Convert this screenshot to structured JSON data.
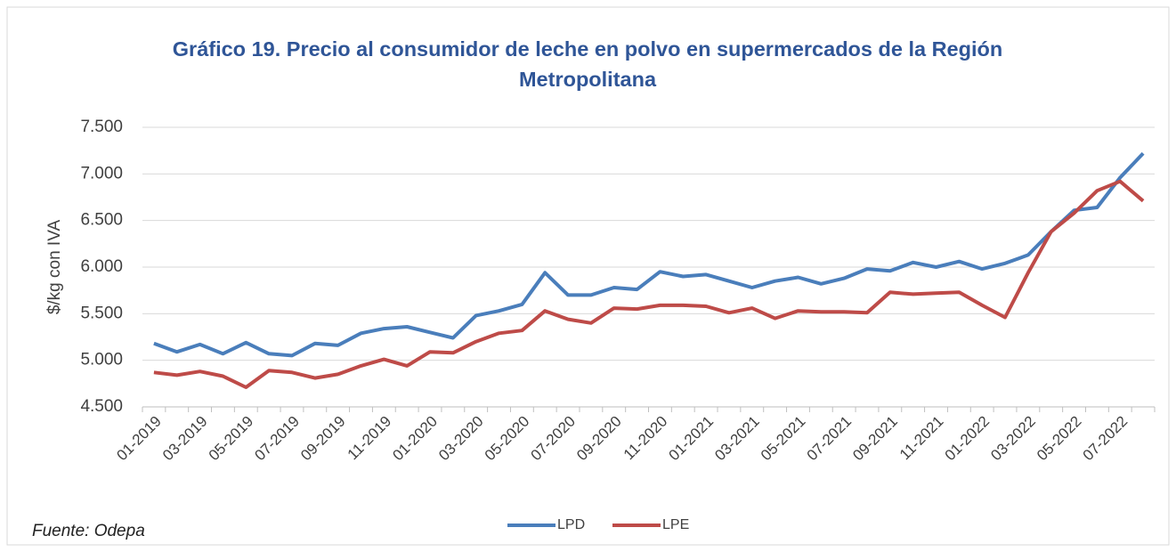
{
  "chart_data": {
    "type": "line",
    "title": "Gráfico 19. Precio al consumidor de leche en polvo en supermercados de la Región Metropolitana",
    "y_label": "$/kg con IVA",
    "source": "Fuente: Odepa",
    "categories": [
      "01-2019",
      null,
      "03-2019",
      null,
      "05-2019",
      null,
      "07-2019",
      null,
      "09-2019",
      null,
      "11-2019",
      null,
      "01-2020",
      null,
      "03-2020",
      null,
      "05-2020",
      null,
      "07-2020",
      null,
      "09-2020",
      null,
      "11-2020",
      null,
      "01-2021",
      null,
      "03-2021",
      null,
      "05-2021",
      null,
      "07-2021",
      null,
      "09-2021",
      null,
      "11-2021",
      null,
      "01-2022",
      null,
      "03-2022",
      null,
      "05-2022",
      null,
      "07-2022",
      null
    ],
    "series": [
      {
        "name": "LPD",
        "color": "#4a7ebb",
        "values": [
          5180,
          5090,
          5170,
          5070,
          5190,
          5070,
          5050,
          5180,
          5160,
          5290,
          5340,
          5360,
          5300,
          5240,
          5480,
          5530,
          5600,
          5940,
          5700,
          5700,
          5780,
          5760,
          5950,
          5900,
          5920,
          5850,
          5780,
          5850,
          5890,
          5820,
          5880,
          5980,
          5960,
          6050,
          6000,
          6060,
          5980,
          6040,
          6130,
          6380,
          6610,
          6640,
          6960,
          7220
        ]
      },
      {
        "name": "LPE",
        "color": "#be4b48",
        "values": [
          4870,
          4840,
          4880,
          4830,
          4710,
          4890,
          4870,
          4810,
          4850,
          4940,
          5010,
          4940,
          5090,
          5080,
          5200,
          5290,
          5320,
          5530,
          5440,
          5400,
          5560,
          5550,
          5590,
          5590,
          5580,
          5510,
          5560,
          5450,
          5530,
          5520,
          5520,
          5510,
          5730,
          5710,
          5720,
          5730,
          5590,
          5460,
          5940,
          6380,
          6580,
          6820,
          6920,
          6710
        ]
      }
    ],
    "ylim": [
      4500,
      7500
    ],
    "yticks": [
      {
        "value": 4500,
        "label": "4.500"
      },
      {
        "value": 5000,
        "label": "5.000"
      },
      {
        "value": 5500,
        "label": "5.500"
      },
      {
        "value": 6000,
        "label": "6.000"
      },
      {
        "value": 6500,
        "label": "6.500"
      },
      {
        "value": 7000,
        "label": "7.000"
      },
      {
        "value": 7500,
        "label": "7.500"
      }
    ],
    "grid": true,
    "legend": "bottom"
  }
}
